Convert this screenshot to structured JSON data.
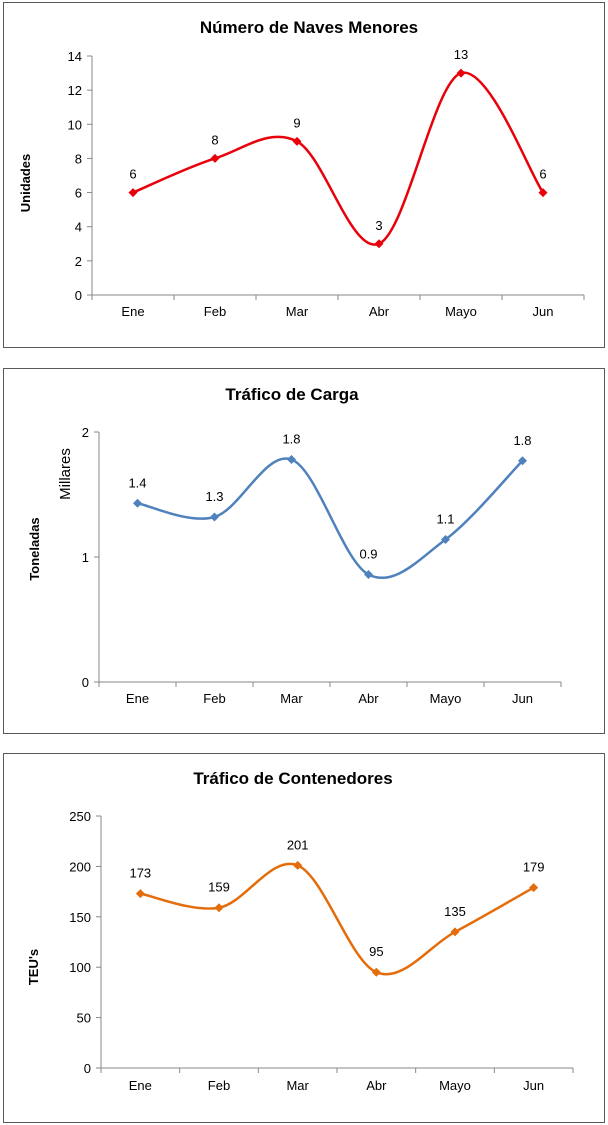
{
  "chart_data": [
    {
      "type": "line",
      "title": "Número de Naves Menores",
      "xlabel": "",
      "ylabel": "Unidades",
      "unit_label": "",
      "categories": [
        "Ene",
        "Feb",
        "Mar",
        "Abr",
        "Mayo",
        "Jun"
      ],
      "series": [
        {
          "values": [
            6,
            8,
            9,
            3,
            13,
            6
          ]
        }
      ],
      "data_labels": [
        "6",
        "8",
        "9",
        "3",
        "13",
        "6"
      ],
      "y_ticks": [
        "0",
        "2",
        "4",
        "6",
        "8",
        "10",
        "12",
        "14"
      ],
      "ylim": [
        0,
        14
      ],
      "grid": false,
      "smooth": true,
      "color": "#e8000b",
      "marker": "diamond"
    },
    {
      "type": "line",
      "title": "Tráfico de Carga",
      "xlabel": "",
      "ylabel": "Toneladas",
      "unit_label": "Millares",
      "categories": [
        "Ene",
        "Feb",
        "Mar",
        "Abr",
        "Mayo",
        "Jun"
      ],
      "series": [
        {
          "values": [
            1.43,
            1.32,
            1.78,
            0.86,
            1.14,
            1.77
          ]
        }
      ],
      "data_labels": [
        "1.4",
        "1.3",
        "1.8",
        "0.9",
        "1.1",
        "1.8"
      ],
      "y_ticks": [
        "0",
        "1",
        "2"
      ],
      "ylim": [
        0,
        2
      ],
      "grid": false,
      "smooth": true,
      "color": "#4f81bd",
      "marker": "diamond"
    },
    {
      "type": "line",
      "title": "Tráfico de Contenedores",
      "xlabel": "",
      "ylabel": "TEU's",
      "unit_label": "",
      "categories": [
        "Ene",
        "Feb",
        "Mar",
        "Abr",
        "Mayo",
        "Jun"
      ],
      "series": [
        {
          "values": [
            173,
            159,
            201,
            95,
            135,
            179
          ]
        }
      ],
      "data_labels": [
        "173",
        "159",
        "201",
        "95",
        "135",
        "179"
      ],
      "y_ticks": [
        "0",
        "50",
        "100",
        "150",
        "200",
        "250"
      ],
      "ylim": [
        0,
        250
      ],
      "grid": false,
      "smooth": true,
      "color": "#e46c0a",
      "marker": "diamond"
    }
  ]
}
